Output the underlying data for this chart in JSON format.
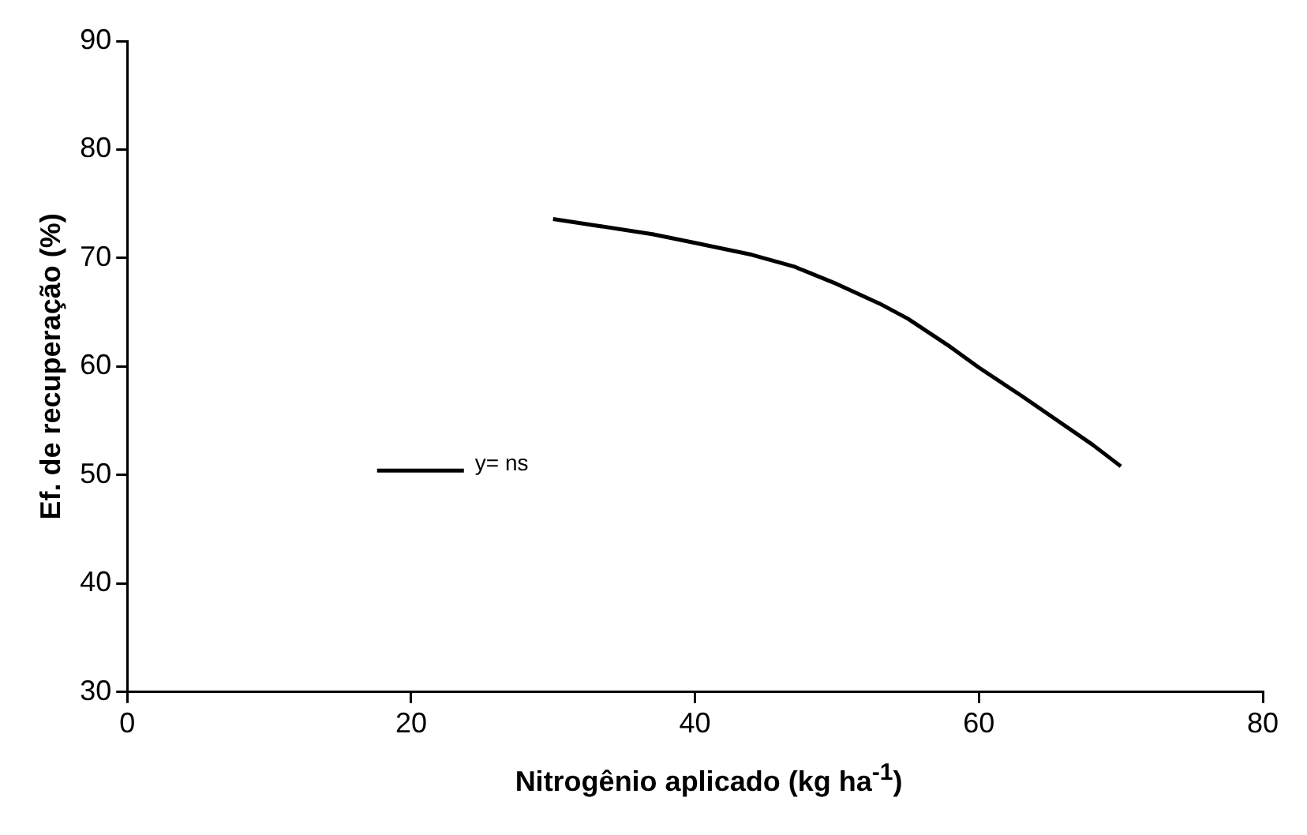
{
  "chart_data": {
    "type": "line",
    "xlabel": "Nitrogênio aplicado (kg ha$^{-1}$)",
    "ylabel": "Ef. de recuperação (%)",
    "x": [
      30,
      33,
      37,
      40,
      44,
      47,
      50,
      53,
      55,
      58,
      60,
      63,
      65,
      68,
      70
    ],
    "series": [
      {
        "name": "y= ns",
        "color": "#000000",
        "values": [
          73.6,
          73.0,
          72.2,
          71.4,
          70.3,
          69.2,
          67.6,
          65.8,
          64.4,
          61.8,
          59.9,
          57.3,
          55.5,
          52.8,
          50.8
        ]
      }
    ],
    "xlim": [
      0,
      80
    ],
    "xticks": [
      0,
      20,
      40,
      60,
      80
    ],
    "ylim": [
      30,
      90
    ],
    "yticks": [
      30,
      40,
      50,
      60,
      70,
      80,
      90
    ],
    "grid": false,
    "legend": "left",
    "marker": "none",
    "line_style": "solid"
  }
}
